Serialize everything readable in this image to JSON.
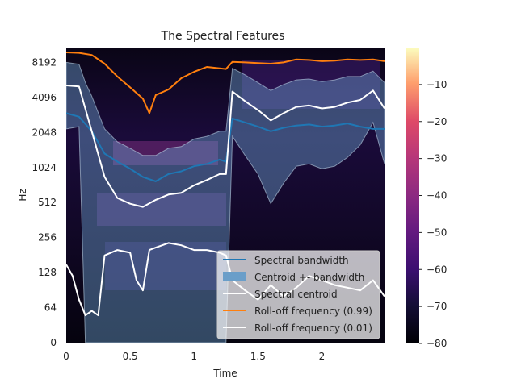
{
  "chart_data": {
    "type": "line",
    "title": "The Spectral Features",
    "xlabel": "Time",
    "ylabel": "Hz",
    "xlim": [
      0,
      2.49
    ],
    "y_scale": "log2",
    "xticks": [
      0,
      0.5,
      1,
      1.5,
      2
    ],
    "xtick_labels": [
      "0",
      "0.5",
      "1",
      "1.5",
      "2"
    ],
    "yticks": [
      0,
      64,
      128,
      256,
      512,
      1024,
      2048,
      4096,
      8192
    ],
    "ytick_labels": [
      "0",
      "64",
      "128",
      "256",
      "512",
      "1024",
      "2048",
      "4096",
      "8192"
    ],
    "colorbar": {
      "colormap": "magma",
      "range": [
        -80,
        0
      ],
      "ticks": [
        -10,
        -20,
        -30,
        -40,
        -50,
        -60,
        -70,
        -80
      ],
      "tick_labels": [
        "−10",
        "−20",
        "−30",
        "−40",
        "−50",
        "−60",
        "−70",
        "−80"
      ]
    },
    "legend_position": "lower-right",
    "colors": {
      "bandwidth": "#1f77b4",
      "band_fill": "#6a9ec9",
      "centroid": "#ffffff",
      "rolloff_99": "#ff7f0e",
      "rolloff_01": "#ffffff"
    },
    "series": [
      {
        "name": "Spectral bandwidth",
        "x": [
          0,
          0.1,
          0.2,
          0.3,
          0.4,
          0.5,
          0.6,
          0.7,
          0.8,
          0.9,
          1.0,
          1.1,
          1.2,
          1.25,
          1.3,
          1.4,
          1.5,
          1.6,
          1.7,
          1.8,
          1.9,
          2.0,
          2.1,
          2.2,
          2.3,
          2.4,
          2.49
        ],
        "y": [
          3000,
          2800,
          2100,
          1350,
          1150,
          1000,
          850,
          780,
          900,
          950,
          1050,
          1100,
          1200,
          1150,
          2700,
          2500,
          2300,
          2100,
          2250,
          2350,
          2400,
          2300,
          2350,
          2450,
          2300,
          2200,
          2200
        ]
      },
      {
        "name": "Spectral centroid",
        "x": [
          0,
          0.1,
          0.2,
          0.3,
          0.4,
          0.5,
          0.6,
          0.7,
          0.8,
          0.9,
          1.0,
          1.1,
          1.2,
          1.25,
          1.3,
          1.4,
          1.5,
          1.6,
          1.7,
          1.8,
          1.9,
          2.0,
          2.1,
          2.2,
          2.3,
          2.4,
          2.49
        ],
        "y": [
          5200,
          5100,
          2100,
          850,
          560,
          500,
          470,
          540,
          600,
          620,
          720,
          800,
          900,
          900,
          4600,
          3800,
          3200,
          2600,
          3000,
          3400,
          3500,
          3300,
          3400,
          3700,
          3900,
          4700,
          3300
        ]
      },
      {
        "name": "Centroid +- bandwidth",
        "x": [
          0,
          0.1,
          0.15,
          0.2,
          0.3,
          0.4,
          0.5,
          0.6,
          0.7,
          0.8,
          0.9,
          1.0,
          1.1,
          1.2,
          1.25,
          1.3,
          1.4,
          1.5,
          1.6,
          1.7,
          1.8,
          1.9,
          2.0,
          2.1,
          2.2,
          2.3,
          2.4,
          2.49
        ],
        "upper": [
          8200,
          7900,
          5500,
          4200,
          2200,
          1700,
          1500,
          1300,
          1300,
          1500,
          1550,
          1800,
          1900,
          2100,
          2100,
          7300,
          6400,
          5500,
          4700,
          5300,
          5800,
          5900,
          5600,
          5800,
          6200,
          6200,
          6900,
          5500
        ],
        "lower": [
          2200,
          2300,
          0,
          0,
          0,
          0,
          0,
          0,
          0,
          0,
          0,
          0,
          0,
          0,
          0,
          1900,
          1300,
          900,
          500,
          750,
          1050,
          1100,
          1000,
          1050,
          1250,
          1600,
          2500,
          1100
        ]
      },
      {
        "name": "Roll-off frequency (0.99)",
        "x": [
          0,
          0.1,
          0.2,
          0.3,
          0.4,
          0.5,
          0.6,
          0.65,
          0.7,
          0.8,
          0.9,
          1.0,
          1.1,
          1.2,
          1.25,
          1.3,
          1.4,
          1.5,
          1.6,
          1.7,
          1.8,
          1.9,
          2.0,
          2.1,
          2.2,
          2.3,
          2.4,
          2.49
        ],
        "y": [
          10000,
          9900,
          9500,
          8000,
          6200,
          5000,
          4000,
          3000,
          4300,
          4800,
          6000,
          6800,
          7500,
          7300,
          7200,
          8300,
          8200,
          8100,
          8000,
          8200,
          8700,
          8600,
          8400,
          8500,
          8700,
          8600,
          8700,
          8400
        ]
      },
      {
        "name": "Roll-off frequency (0.01)",
        "x": [
          0,
          0.05,
          0.1,
          0.15,
          0.2,
          0.25,
          0.3,
          0.4,
          0.5,
          0.55,
          0.6,
          0.65,
          0.7,
          0.8,
          0.9,
          1.0,
          1.1,
          1.2,
          1.25,
          1.3,
          1.4,
          1.5,
          1.6,
          1.7,
          1.8,
          1.9,
          2.0,
          2.1,
          2.2,
          2.3,
          2.4,
          2.49
        ],
        "y": [
          150,
          120,
          75,
          55,
          60,
          55,
          180,
          200,
          190,
          110,
          90,
          200,
          210,
          230,
          220,
          200,
          200,
          190,
          180,
          110,
          90,
          75,
          100,
          80,
          95,
          120,
          110,
          100,
          95,
          90,
          110,
          80
        ]
      }
    ]
  }
}
